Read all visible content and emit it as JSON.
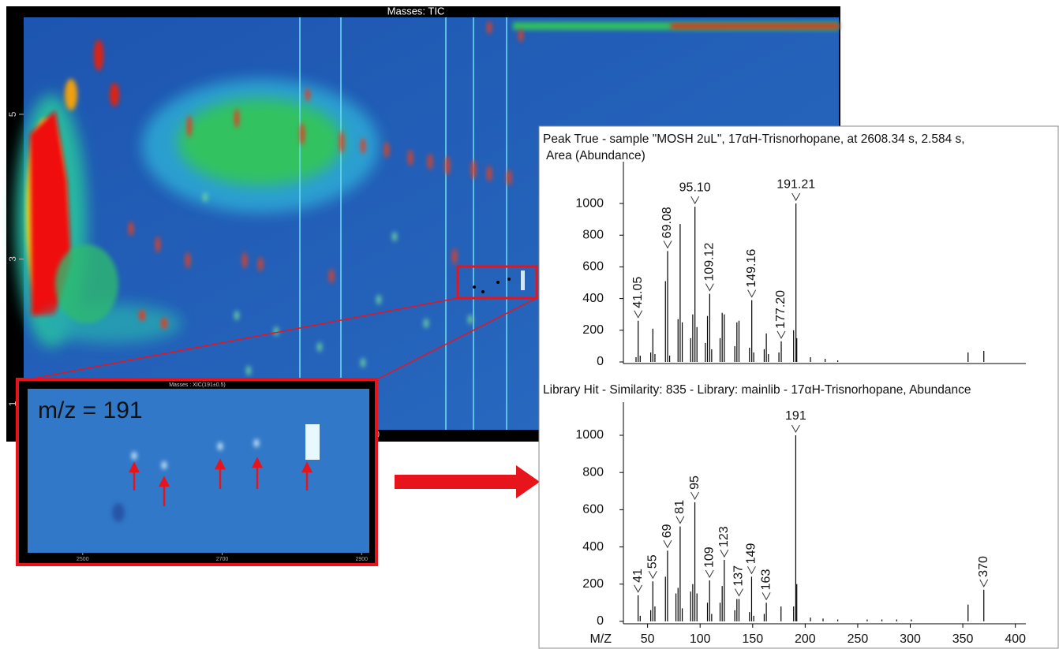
{
  "contour": {
    "title": "Masses: TIC",
    "ylim": [
      0.64,
      6.34
    ],
    "yticks": [
      1,
      3,
      5
    ],
    "x_label_fragments": [
      "0",
      "3"
    ]
  },
  "inset": {
    "title": "Masses : XIC(191±0.5)",
    "annotation": "m/z = 191",
    "xlim": [
      2421,
      2911
    ],
    "xticks": [
      2500,
      2700,
      2900
    ]
  },
  "chart_data": [
    {
      "type": "stem",
      "title": [
        "Peak True - sample \"MOSH 2uL\", 17αH-Trisnorhopane, at 2608.34 s, 2.584 s,",
        "Area (Abundance)"
      ],
      "xlim": [
        27,
        410
      ],
      "ylim": [
        -10,
        1264
      ],
      "yticks": [
        0,
        200,
        400,
        600,
        800,
        1000
      ],
      "x": [
        39,
        41.05,
        43,
        53,
        55,
        57,
        67,
        69.08,
        71,
        79,
        81,
        83,
        91,
        93,
        95.1,
        97,
        105,
        107,
        109.12,
        111,
        119,
        121,
        123,
        133,
        135,
        137,
        147,
        149.16,
        151,
        161,
        163,
        165,
        175,
        177.2,
        189,
        191.21,
        192,
        205,
        219,
        231,
        355,
        370
      ],
      "values": [
        30,
        260,
        40,
        60,
        210,
        50,
        510,
        700,
        40,
        270,
        870,
        250,
        150,
        300,
        980,
        220,
        120,
        290,
        430,
        80,
        150,
        310,
        300,
        100,
        250,
        260,
        90,
        390,
        60,
        80,
        180,
        50,
        60,
        130,
        200,
        1000,
        150,
        30,
        20,
        10,
        60,
        70
      ],
      "annotations": [
        41.05,
        69.08,
        {
          "value": 95.1,
          "label": "95.10"
        },
        109.12,
        149.16,
        {
          "value": 177.2,
          "label": "177.20"
        },
        191.21
      ]
    },
    {
      "type": "stem",
      "title": "Library Hit - Similarity: 835 - Library: mainlib - 17αH-Trisnorhopane, Abundance",
      "xlabel": "M/Z",
      "xlim": [
        27,
        410
      ],
      "ylim": [
        -13,
        1178
      ],
      "yticks": [
        0,
        200,
        400,
        600,
        800,
        1000
      ],
      "xticks": [
        50,
        100,
        150,
        200,
        250,
        300,
        350,
        400
      ],
      "x": [
        41,
        43,
        53,
        55,
        57,
        67,
        69,
        77,
        79,
        81,
        83,
        91,
        93,
        95,
        97,
        107,
        109,
        111,
        119,
        121,
        123,
        133,
        135,
        137,
        147,
        149,
        151,
        161,
        163,
        177,
        189,
        191,
        192,
        205,
        217,
        231,
        259,
        273,
        287,
        301,
        355,
        370
      ],
      "values": [
        140,
        30,
        60,
        215,
        80,
        240,
        380,
        150,
        180,
        510,
        70,
        160,
        200,
        640,
        150,
        100,
        220,
        40,
        100,
        190,
        330,
        60,
        120,
        120,
        50,
        240,
        30,
        40,
        100,
        80,
        80,
        1000,
        200,
        20,
        15,
        10,
        10,
        10,
        10,
        10,
        90,
        170
      ],
      "annotations": [
        41,
        55,
        69,
        81,
        95,
        109,
        123,
        137,
        149,
        163,
        191,
        370
      ]
    }
  ]
}
